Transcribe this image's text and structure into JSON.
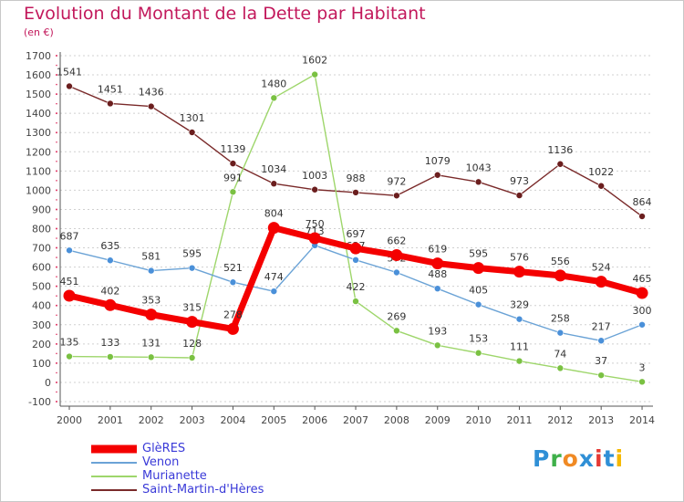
{
  "header": {
    "title": "Evolution du Montant de la Dette par Habitant",
    "subtitle": "(en €)"
  },
  "logo": {
    "text": "Proxiti",
    "colors": [
      "#2f8fd6",
      "#3fb04a",
      "#f08a24",
      "#2f8fd6",
      "#e53935",
      "#2f8fd6",
      "#f5b800"
    ]
  },
  "chart_data": {
    "type": "line",
    "title": "Evolution du Montant de la Dette par Habitant",
    "ylabel": "(en €)",
    "xlabel": "",
    "x": [
      "2000",
      "2001",
      "2002",
      "2003",
      "2004",
      "2005",
      "2006",
      "2007",
      "2008",
      "2009",
      "2010",
      "2011",
      "2012",
      "2013",
      "2014"
    ],
    "yticks": [
      -100,
      0,
      100,
      200,
      300,
      400,
      500,
      600,
      700,
      800,
      900,
      1000,
      1100,
      1200,
      1300,
      1400,
      1500,
      1600,
      1700
    ],
    "ylim": [
      -100,
      1700
    ],
    "grid": "horizontal dashed",
    "legend_position": "bottom-left",
    "series": [
      {
        "name": "Saint-Martin-d'Hères",
        "color": "#7a2a2a",
        "marker": "#6b1e1e",
        "values": [
          1541,
          1451,
          1436,
          1301,
          1139,
          1034,
          1003,
          988,
          972,
          1079,
          1043,
          973,
          1136,
          1022,
          864
        ]
      },
      {
        "name": "Murianette",
        "color": "#9ed66b",
        "marker": "#7ac142",
        "values": [
          135,
          133,
          131,
          128,
          991,
          1480,
          1602,
          422,
          269,
          193,
          153,
          111,
          74,
          37,
          3
        ]
      },
      {
        "name": "Venon",
        "color": "#6ba3d6",
        "marker": "#4a90d9",
        "values": [
          687,
          635,
          581,
          595,
          521,
          474,
          713,
          637,
          572,
          488,
          405,
          329,
          258,
          217,
          300
        ]
      },
      {
        "name": "GlèRES",
        "color": "#f40000",
        "marker": "#f40000",
        "values": [
          451,
          402,
          353,
          315,
          278,
          804,
          750,
          697,
          662,
          619,
          595,
          576,
          556,
          524,
          465
        ]
      }
    ]
  }
}
